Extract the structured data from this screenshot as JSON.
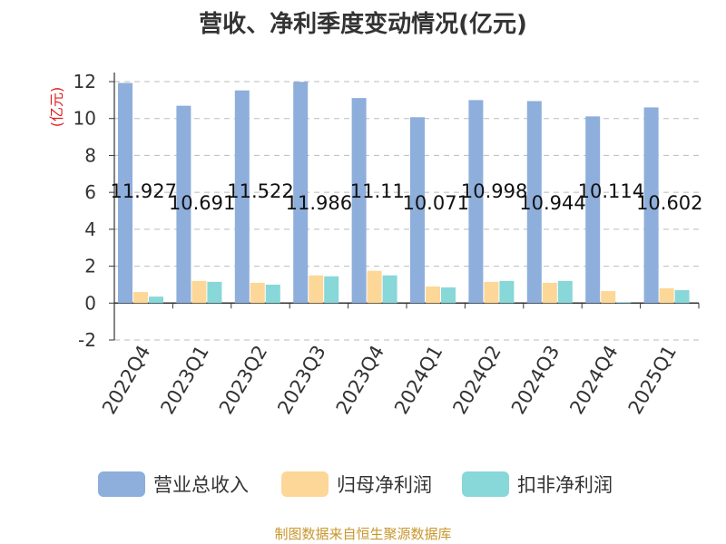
{
  "chart_data": {
    "type": "bar",
    "title": "营收、净利季度变动情况(亿元)",
    "ylabel": "(亿元)",
    "ylim": [
      -2,
      12
    ],
    "yticks": [
      -2,
      0,
      2,
      4,
      6,
      8,
      10,
      12
    ],
    "grid": true,
    "legend_position": "bottom",
    "categories": [
      "2022Q4",
      "2023Q1",
      "2023Q2",
      "2023Q3",
      "2023Q4",
      "2024Q1",
      "2024Q2",
      "2024Q3",
      "2024Q4",
      "2025Q1"
    ],
    "series": [
      {
        "name": "营业总收入",
        "color": "#8eaedb",
        "values": [
          11.927,
          10.691,
          11.522,
          11.986,
          11.11,
          10.071,
          10.998,
          10.944,
          10.114,
          10.602
        ],
        "labels": [
          "11.927",
          "10.691",
          "11.522",
          "11.986",
          "11.11",
          "10.071",
          "10.998",
          "10.944",
          "10.114",
          "10.602"
        ]
      },
      {
        "name": "归母净利润",
        "color": "#fdd797",
        "values": [
          0.6,
          1.2,
          1.1,
          1.5,
          1.75,
          0.9,
          1.15,
          1.1,
          0.65,
          0.8
        ]
      },
      {
        "name": "扣非净利润",
        "color": "#88d7d9",
        "values": [
          0.35,
          1.15,
          1.0,
          1.45,
          1.5,
          0.85,
          1.2,
          1.2,
          0.05,
          0.7
        ]
      }
    ]
  },
  "source": "制图数据来自恒生聚源数据库"
}
